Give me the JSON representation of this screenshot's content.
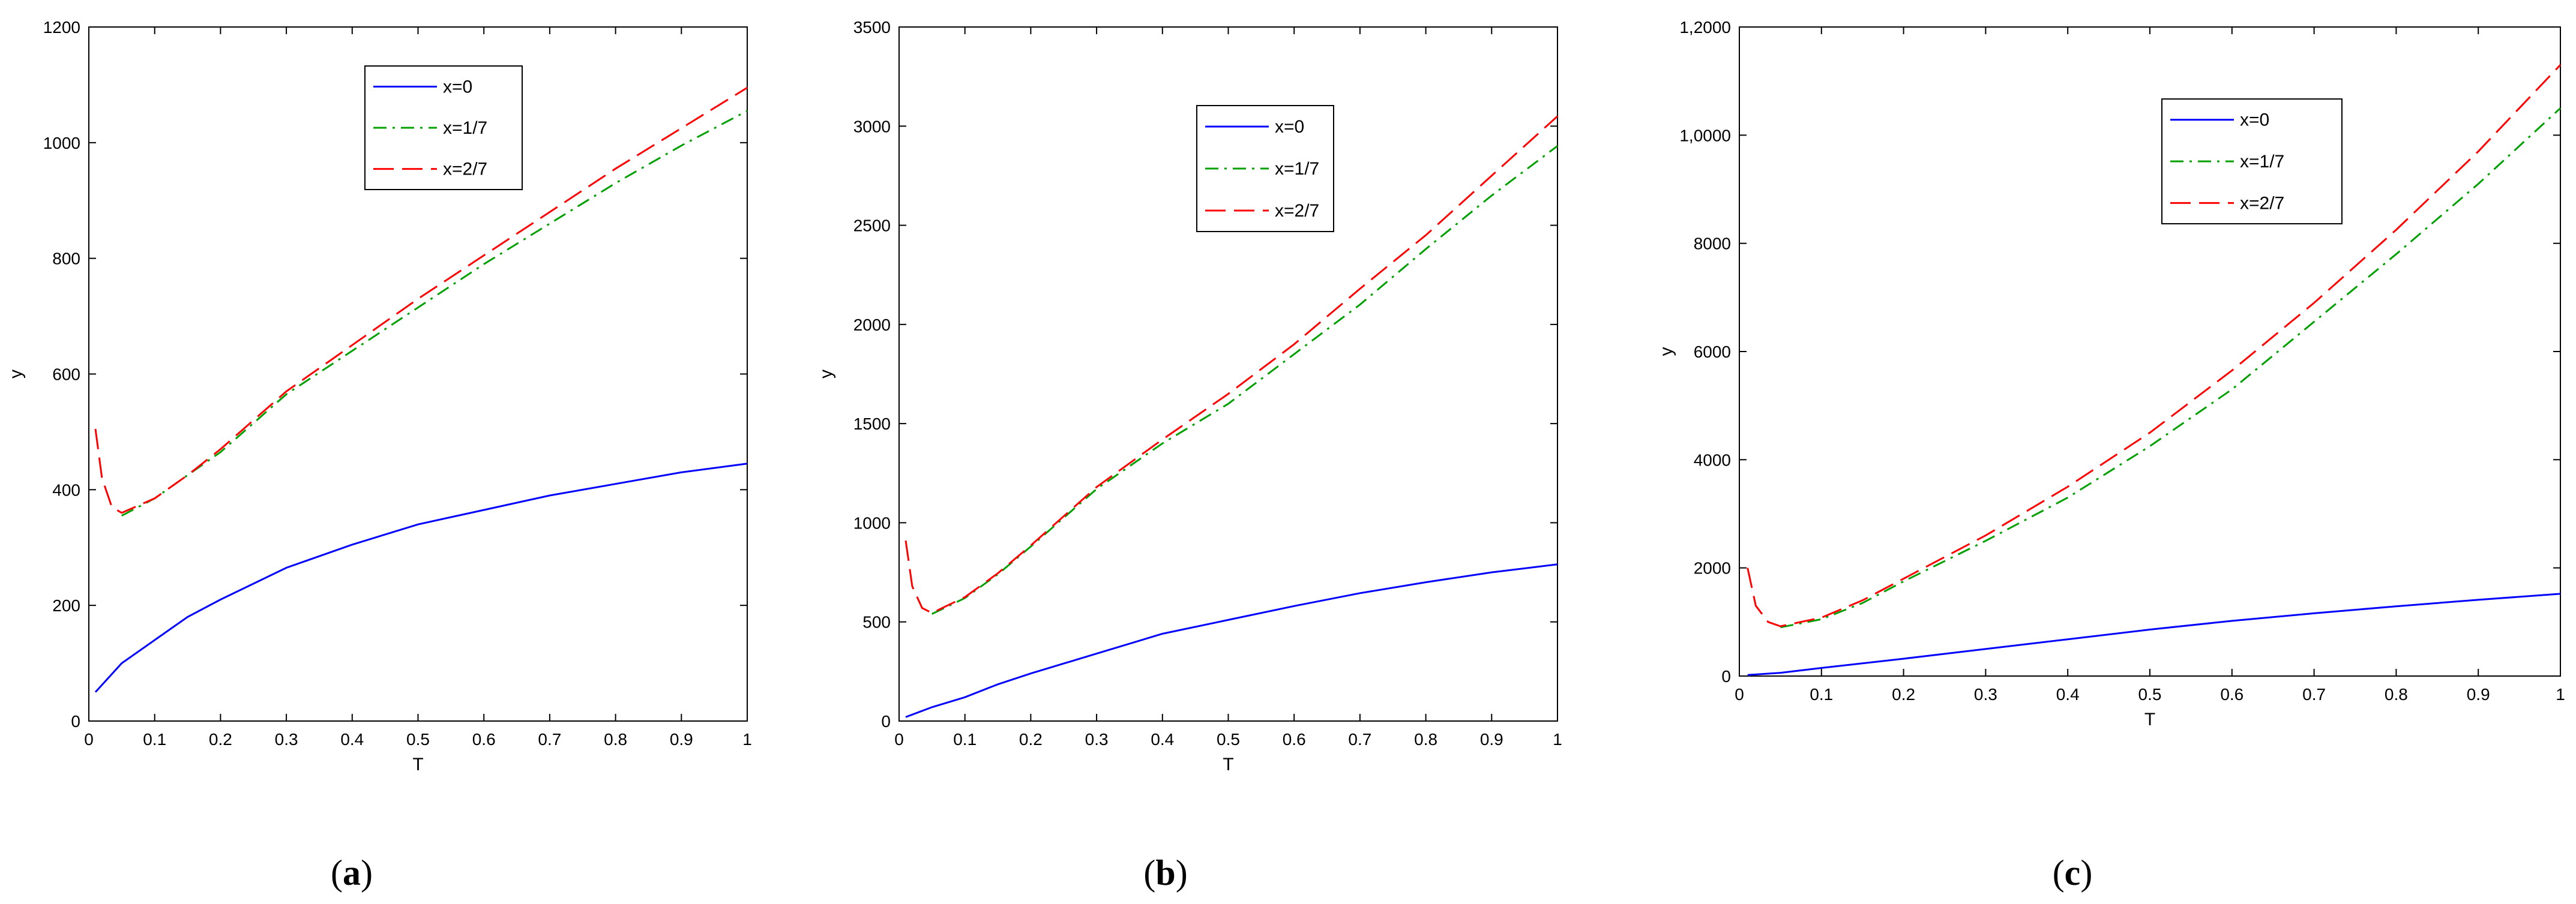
{
  "figure": {
    "panels": [
      {
        "caption_open": "(",
        "caption_letter": "a",
        "caption_close": ")"
      },
      {
        "caption_open": "(",
        "caption_letter": "b",
        "caption_close": ")"
      },
      {
        "caption_open": "(",
        "caption_letter": "c",
        "caption_close": ")"
      }
    ]
  },
  "colors": {
    "x0": "#0000ff",
    "x17": "#00a000",
    "x27": "#ff0000"
  },
  "chart_data": [
    {
      "type": "line",
      "panel": "a",
      "title": "",
      "xlabel": "T",
      "ylabel": "y",
      "xlim": [
        0,
        1
      ],
      "ylim": [
        0,
        1200
      ],
      "xticks": [
        0,
        0.1,
        0.2,
        0.3,
        0.4,
        0.5,
        0.6,
        0.7,
        0.8,
        0.9,
        1
      ],
      "xtick_labels": [
        "0",
        "0.1",
        "0.2",
        "0.3",
        "0.4",
        "0.5",
        "0.6",
        "0.7",
        "0.8",
        "0.9",
        "1"
      ],
      "yticks": [
        0,
        200,
        400,
        600,
        800,
        1000,
        1200
      ],
      "ytick_labels": [
        "0",
        "200",
        "400",
        "600",
        "800",
        "1000",
        "1200"
      ],
      "legend_position": "top-center",
      "series": [
        {
          "name": "x=0",
          "style": "solid",
          "color": "#0000ff",
          "x": [
            0.01,
            0.05,
            0.1,
            0.15,
            0.2,
            0.3,
            0.4,
            0.5,
            0.6,
            0.7,
            0.8,
            0.9,
            1.0
          ],
          "y": [
            50,
            100,
            140,
            180,
            210,
            265,
            305,
            340,
            365,
            390,
            410,
            430,
            445
          ]
        },
        {
          "name": "x=1/7",
          "style": "dashdot",
          "color": "#00a000",
          "x": [
            0.05,
            0.1,
            0.15,
            0.2,
            0.3,
            0.4,
            0.5,
            0.6,
            0.7,
            0.8,
            0.9,
            1.0
          ],
          "y": [
            355,
            385,
            425,
            465,
            565,
            640,
            715,
            790,
            860,
            930,
            995,
            1055
          ]
        },
        {
          "name": "x=2/7",
          "style": "dashed",
          "color": "#ff0000",
          "x": [
            0.01,
            0.02,
            0.035,
            0.05,
            0.1,
            0.15,
            0.2,
            0.3,
            0.4,
            0.5,
            0.6,
            0.7,
            0.8,
            0.9,
            1.0
          ],
          "y": [
            505,
            420,
            370,
            360,
            385,
            425,
            470,
            570,
            650,
            730,
            805,
            880,
            955,
            1025,
            1095
          ]
        }
      ]
    },
    {
      "type": "line",
      "panel": "b",
      "title": "",
      "xlabel": "T",
      "ylabel": "y",
      "xlim": [
        0,
        1
      ],
      "ylim": [
        0,
        3500
      ],
      "xticks": [
        0,
        0.1,
        0.2,
        0.3,
        0.4,
        0.5,
        0.6,
        0.7,
        0.8,
        0.9,
        1
      ],
      "xtick_labels": [
        "0",
        "0.1",
        "0.2",
        "0.3",
        "0.4",
        "0.5",
        "0.6",
        "0.7",
        "0.8",
        "0.9",
        "1"
      ],
      "yticks": [
        0,
        500,
        1000,
        1500,
        2000,
        2500,
        3000,
        3500
      ],
      "ytick_labels": [
        "0",
        "500",
        "1000",
        "1500",
        "2000",
        "2500",
        "3000",
        "3500"
      ],
      "legend_position": "top-center",
      "series": [
        {
          "name": "x=0",
          "style": "solid",
          "color": "#0000ff",
          "x": [
            0.01,
            0.05,
            0.1,
            0.15,
            0.2,
            0.3,
            0.4,
            0.5,
            0.6,
            0.7,
            0.8,
            0.9,
            1.0
          ],
          "y": [
            20,
            70,
            120,
            185,
            240,
            340,
            440,
            510,
            580,
            645,
            700,
            750,
            790
          ]
        },
        {
          "name": "x=1/7",
          "style": "dashdot",
          "color": "#00a000",
          "x": [
            0.05,
            0.1,
            0.15,
            0.2,
            0.3,
            0.4,
            0.5,
            0.6,
            0.7,
            0.8,
            0.9,
            1.0
          ],
          "y": [
            540,
            620,
            740,
            880,
            1170,
            1400,
            1600,
            1850,
            2100,
            2380,
            2650,
            2900
          ]
        },
        {
          "name": "x=2/7",
          "style": "dashed",
          "color": "#ff0000",
          "x": [
            0.01,
            0.02,
            0.035,
            0.05,
            0.1,
            0.15,
            0.2,
            0.3,
            0.4,
            0.5,
            0.6,
            0.7,
            0.8,
            0.9,
            1.0
          ],
          "y": [
            910,
            680,
            570,
            545,
            625,
            745,
            885,
            1180,
            1420,
            1650,
            1900,
            2180,
            2450,
            2750,
            3050
          ]
        }
      ]
    },
    {
      "type": "line",
      "panel": "c",
      "title": "",
      "xlabel": "T",
      "ylabel": "y",
      "xlim": [
        0,
        1
      ],
      "ylim": [
        0,
        12000
      ],
      "xticks": [
        0,
        0.1,
        0.2,
        0.3,
        0.4,
        0.5,
        0.6,
        0.7,
        0.8,
        0.9,
        1
      ],
      "xtick_labels": [
        "0",
        "0.1",
        "0.2",
        "0.3",
        "0.4",
        "0.5",
        "0.6",
        "0.7",
        "0.8",
        "0.9",
        "1"
      ],
      "yticks": [
        0,
        2000,
        4000,
        6000,
        8000,
        10000,
        12000
      ],
      "ytick_labels": [
        "0",
        "2000",
        "4000",
        "6000",
        "8000",
        "1,0000",
        "1,2000"
      ],
      "legend_position": "top-center",
      "series": [
        {
          "name": "x=0",
          "style": "solid",
          "color": "#0000ff",
          "x": [
            0.01,
            0.05,
            0.1,
            0.2,
            0.3,
            0.4,
            0.5,
            0.6,
            0.7,
            0.8,
            0.9,
            1.0
          ],
          "y": [
            20,
            60,
            150,
            320,
            500,
            680,
            860,
            1020,
            1160,
            1290,
            1410,
            1520
          ]
        },
        {
          "name": "x=1/7",
          "style": "dashdot",
          "color": "#00a000",
          "x": [
            0.05,
            0.1,
            0.15,
            0.2,
            0.3,
            0.4,
            0.5,
            0.6,
            0.7,
            0.8,
            0.9,
            1.0
          ],
          "y": [
            900,
            1050,
            1350,
            1750,
            2500,
            3300,
            4250,
            5300,
            6550,
            7800,
            9100,
            10500
          ]
        },
        {
          "name": "x=2/7",
          "style": "dashed",
          "color": "#ff0000",
          "x": [
            0.01,
            0.02,
            0.035,
            0.05,
            0.1,
            0.15,
            0.2,
            0.3,
            0.4,
            0.5,
            0.6,
            0.7,
            0.8,
            0.9,
            1.0
          ],
          "y": [
            2000,
            1300,
            1000,
            920,
            1080,
            1400,
            1800,
            2600,
            3500,
            4500,
            5650,
            6900,
            8250,
            9700,
            11300
          ]
        }
      ]
    }
  ]
}
